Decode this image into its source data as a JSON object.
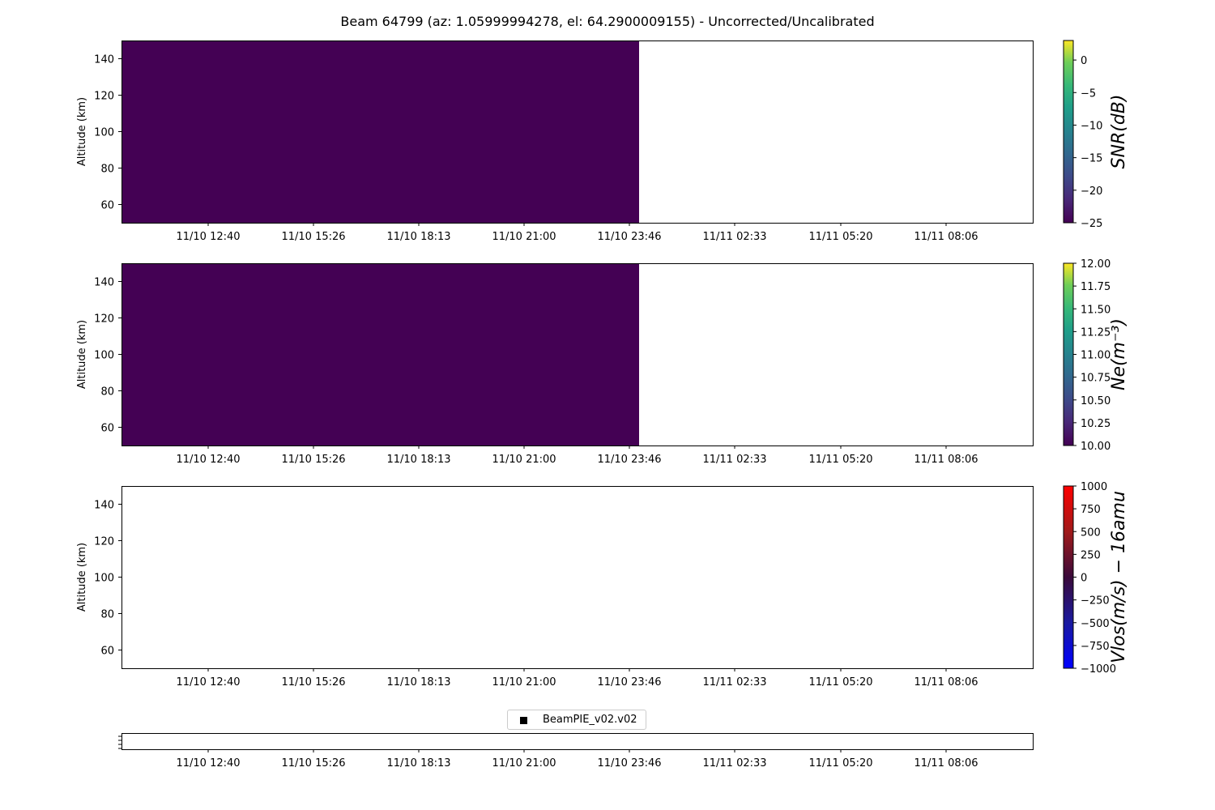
{
  "title": "Beam 64799 (az: 1.05999994278, el: 64.2900009155) - Uncorrected/Uncalibrated",
  "legend": {
    "entries": [
      {
        "label": "BeamPIE_v02.v02",
        "marker": "square",
        "color": "#000000"
      }
    ]
  },
  "chart_data": [
    {
      "type": "heatmap",
      "ylabel": "Altitude (km)",
      "ylim": [
        50,
        150
      ],
      "y_ticks": [
        60,
        80,
        100,
        120,
        140
      ],
      "x_tick_labels": [
        "11/10 12:40",
        "11/10 15:26",
        "11/10 18:13",
        "11/10 21:00",
        "11/10 23:46",
        "11/11 02:33",
        "11/11 05:20",
        "11/11 08:06"
      ],
      "data_extent_x": [
        "start",
        "11/11 00:00"
      ],
      "fill_value": -25,
      "fill_color": "#440154",
      "colorbar": {
        "label": "SNR(dB)",
        "colormap": "viridis",
        "range": [
          -25,
          3
        ],
        "ticks": [
          0,
          -5,
          -10,
          -15,
          -20,
          -25
        ],
        "tick_labels": [
          "0",
          "−5",
          "−10",
          "−15",
          "−20",
          "−25"
        ]
      }
    },
    {
      "type": "heatmap",
      "ylabel": "Altitude (km)",
      "ylim": [
        50,
        150
      ],
      "y_ticks": [
        60,
        80,
        100,
        120,
        140
      ],
      "x_tick_labels": [
        "11/10 12:40",
        "11/10 15:26",
        "11/10 18:13",
        "11/10 21:00",
        "11/10 23:46",
        "11/11 02:33",
        "11/11 05:20",
        "11/11 08:06"
      ],
      "data_extent_x": [
        "start",
        "11/11 00:00"
      ],
      "fill_value": 10,
      "fill_color": "#440154",
      "colorbar": {
        "label": "Ne(m⁻³)",
        "colormap": "viridis",
        "range": [
          10,
          12
        ],
        "ticks": [
          12,
          11.75,
          11.5,
          11.25,
          11,
          10.75,
          10.5,
          10.25,
          10
        ],
        "tick_labels": [
          "12.00",
          "11.75",
          "11.50",
          "11.25",
          "11.00",
          "10.75",
          "10.50",
          "10.25",
          "10.00"
        ]
      }
    },
    {
      "type": "heatmap",
      "ylabel": "Altitude (km)",
      "ylim": [
        50,
        150
      ],
      "y_ticks": [
        60,
        80,
        100,
        120,
        140
      ],
      "x_tick_labels": [
        "11/10 12:40",
        "11/10 15:26",
        "11/10 18:13",
        "11/10 21:00",
        "11/10 23:46",
        "11/11 02:33",
        "11/11 05:20",
        "11/11 08:06"
      ],
      "data_extent_x": null,
      "colorbar": {
        "label": "Vlos(m/s) − 16amu",
        "colormap": "bwr-dark",
        "range": [
          -1000,
          1000
        ],
        "ticks": [
          1000,
          750,
          500,
          250,
          0,
          -250,
          -500,
          -750,
          -1000
        ],
        "tick_labels": [
          "1000",
          "750",
          "500",
          "250",
          "0",
          "−250",
          "−500",
          "−750",
          "−1000"
        ]
      }
    },
    {
      "type": "scatter",
      "ylabel": "",
      "x_tick_labels": [
        "11/10 12:40",
        "11/10 15:26",
        "11/10 18:13",
        "11/10 21:00",
        "11/10 23:46",
        "11/11 02:33",
        "11/11 05:20",
        "11/11 08:06"
      ],
      "series": [
        {
          "name": "BeamPIE_v02.v02",
          "values": []
        }
      ]
    }
  ]
}
